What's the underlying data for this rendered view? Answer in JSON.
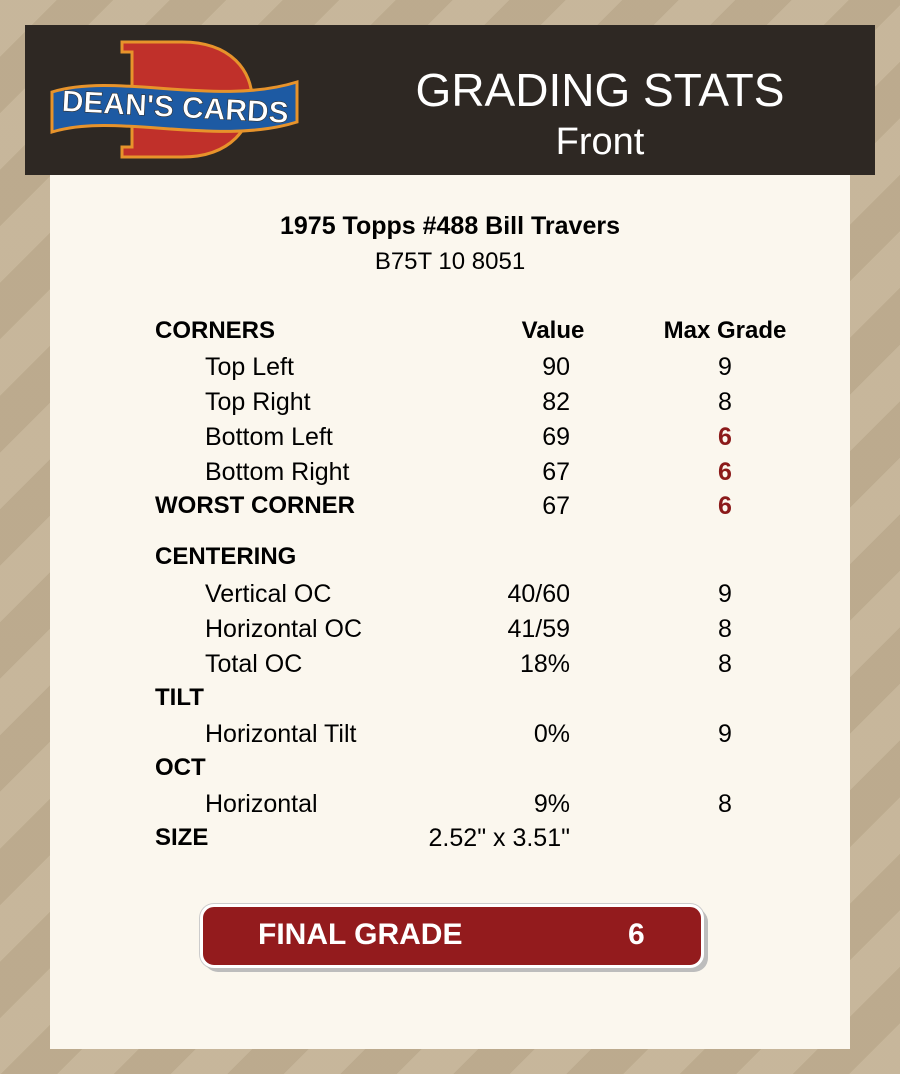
{
  "header": {
    "logo_text": "DEAN'S CARDS",
    "title": "GRADING STATS",
    "subtitle": "Front"
  },
  "card": {
    "name": "1975 Topps #488 Bill Travers",
    "code": "B75T 10 8051"
  },
  "columns": {
    "section": "CORNERS",
    "value": "Value",
    "max_grade": "Max Grade"
  },
  "corners": [
    {
      "label": "Top Left",
      "value": "90",
      "grade": "9",
      "flag": false
    },
    {
      "label": "Top Right",
      "value": "82",
      "grade": "8",
      "flag": false
    },
    {
      "label": "Bottom Left",
      "value": "69",
      "grade": "6",
      "flag": true
    },
    {
      "label": "Bottom Right",
      "value": "67",
      "grade": "6",
      "flag": true
    }
  ],
  "worst_corner": {
    "label": "WORST CORNER",
    "value": "67",
    "grade": "6"
  },
  "centering": {
    "label": "CENTERING",
    "rows": [
      {
        "label": "Vertical OC",
        "value": "40/60",
        "grade": "9"
      },
      {
        "label": "Horizontal OC",
        "value": "41/59",
        "grade": "8"
      },
      {
        "label": "Total OC",
        "value": "18%",
        "grade": "8"
      }
    ]
  },
  "tilt": {
    "label": "TILT",
    "rows": [
      {
        "label": "Horizontal Tilt",
        "value": "0%",
        "grade": "9"
      }
    ]
  },
  "oct": {
    "label": "OCT",
    "rows": [
      {
        "label": "Horizontal",
        "value": "9%",
        "grade": "8"
      }
    ]
  },
  "size": {
    "label": "SIZE",
    "value": "2.52\" x 3.51\""
  },
  "final": {
    "label": "FINAL GRADE",
    "grade": "6"
  },
  "colors": {
    "header_bg": "#2e2823",
    "accent_red": "#931b1d",
    "grade_flag": "#8b1a1a",
    "panel": "#fbf7ee"
  }
}
